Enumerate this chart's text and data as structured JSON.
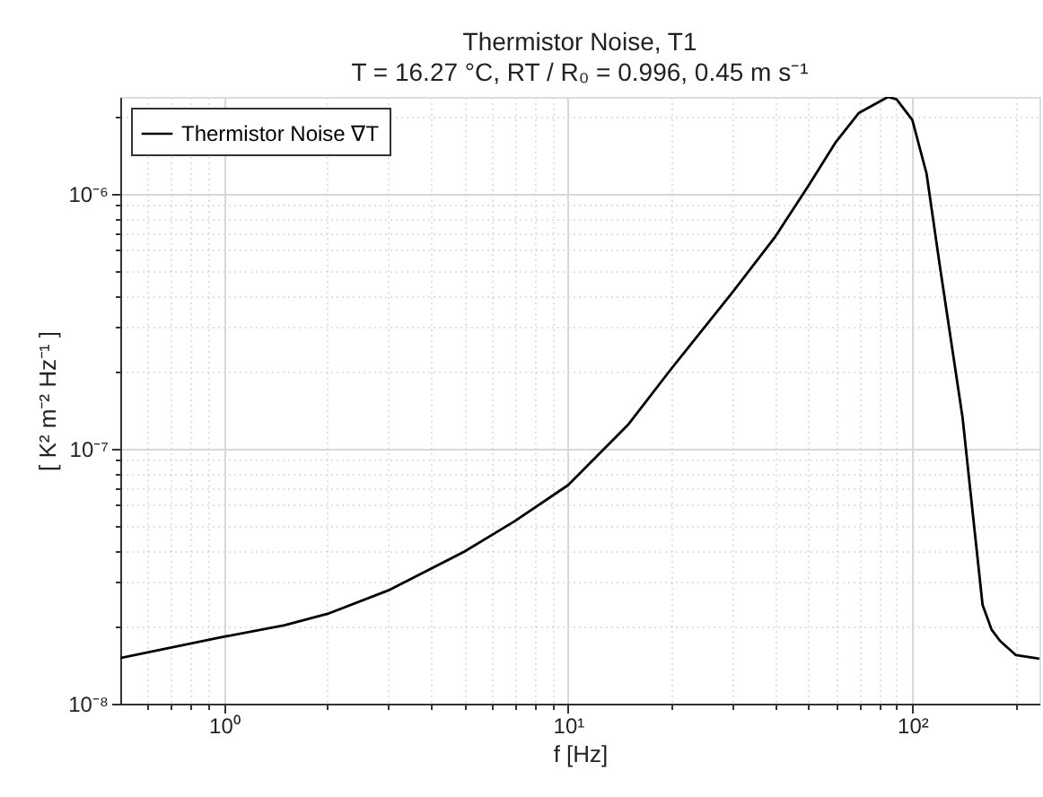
{
  "chart_data": {
    "type": "line",
    "title": "Thermistor Noise, T1",
    "subtitle": "T = 16.27 °C, RT / R₀ = 0.996, 0.45 m s⁻¹",
    "xlabel": "f  [Hz]",
    "ylabel": "[ K² m⁻² Hz⁻¹ ]",
    "x": [
      0.5,
      1,
      1.5,
      2,
      3,
      5,
      7,
      10,
      15,
      20,
      30,
      40,
      50,
      60,
      70,
      85,
      90,
      100,
      110,
      120,
      140,
      150,
      160,
      170,
      180,
      200,
      234
    ],
    "series": [
      {
        "name": "Thermistor Noise ∇T",
        "color": "#000000",
        "values": [
          1.51e-08,
          1.83e-08,
          2.03e-08,
          2.25e-08,
          2.78e-08,
          3.95e-08,
          5.2e-08,
          7.2e-08,
          1.25e-07,
          2.07e-07,
          4.1e-07,
          6.8e-07,
          1.08e-06,
          1.6e-06,
          2.08e-06,
          2.4e-06,
          2.35e-06,
          1.95e-06,
          1.2e-06,
          5.3e-07,
          1.32e-07,
          5.5e-08,
          2.44e-08,
          1.95e-08,
          1.76e-08,
          1.55e-08,
          1.5e-08
        ]
      }
    ],
    "log": "xy",
    "xlim": [
      0.5,
      234
    ],
    "ylim": [
      1e-08,
      2.4e-06
    ],
    "xticks": [
      {
        "value": 0.6,
        "label": null
      },
      {
        "value": 0.7,
        "label": null
      },
      {
        "value": 0.8,
        "label": null
      },
      {
        "value": 0.9,
        "label": null
      },
      {
        "value": 1,
        "label": "10⁰"
      },
      {
        "value": 2,
        "label": null
      },
      {
        "value": 3,
        "label": null
      },
      {
        "value": 4,
        "label": null
      },
      {
        "value": 5,
        "label": null
      },
      {
        "value": 6,
        "label": null
      },
      {
        "value": 7,
        "label": null
      },
      {
        "value": 8,
        "label": null
      },
      {
        "value": 9,
        "label": null
      },
      {
        "value": 10,
        "label": "10¹"
      },
      {
        "value": 20,
        "label": null
      },
      {
        "value": 30,
        "label": null
      },
      {
        "value": 40,
        "label": null
      },
      {
        "value": 50,
        "label": null
      },
      {
        "value": 60,
        "label": null
      },
      {
        "value": 70,
        "label": null
      },
      {
        "value": 80,
        "label": null
      },
      {
        "value": 90,
        "label": null
      },
      {
        "value": 100,
        "label": "10²"
      },
      {
        "value": 200,
        "label": null
      }
    ],
    "yticks": [
      {
        "value": 1e-08,
        "label": "10⁻⁸"
      },
      {
        "value": 2e-08,
        "label": null
      },
      {
        "value": 3e-08,
        "label": null
      },
      {
        "value": 4e-08,
        "label": null
      },
      {
        "value": 5e-08,
        "label": null
      },
      {
        "value": 6e-08,
        "label": null
      },
      {
        "value": 7e-08,
        "label": null
      },
      {
        "value": 8e-08,
        "label": null
      },
      {
        "value": 9e-08,
        "label": null
      },
      {
        "value": 1e-07,
        "label": "10⁻⁷"
      },
      {
        "value": 2e-07,
        "label": null
      },
      {
        "value": 3e-07,
        "label": null
      },
      {
        "value": 4e-07,
        "label": null
      },
      {
        "value": 5e-07,
        "label": null
      },
      {
        "value": 6e-07,
        "label": null
      },
      {
        "value": 7e-07,
        "label": null
      },
      {
        "value": 8e-07,
        "label": null
      },
      {
        "value": 9e-07,
        "label": null
      },
      {
        "value": 1e-06,
        "label": "10⁻⁶"
      },
      {
        "value": 2e-06,
        "label": null
      }
    ],
    "grid": true,
    "legend": "top left",
    "marker": "none",
    "line_style": "solid"
  }
}
